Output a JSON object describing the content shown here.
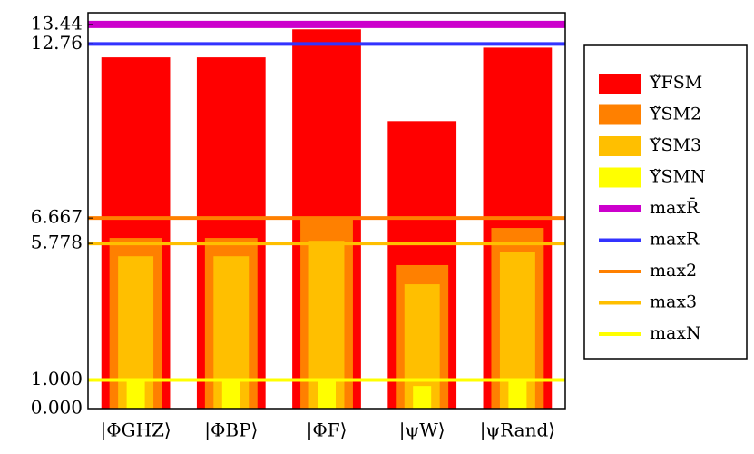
{
  "chart_data": {
    "type": "bar",
    "categories": [
      "|ΦGHZ⟩",
      "|ΦBP⟩",
      "|ΦF⟩",
      "|ψW⟩",
      "|ψRand⟩"
    ],
    "series": [
      {
        "name": "Υ̃FSM",
        "color": "#ff0000",
        "values": [
          12.29,
          12.29,
          13.27,
          10.06,
          12.63
        ]
      },
      {
        "name": "Υ̃SM2",
        "color": "#ff8000",
        "values": [
          5.97,
          5.97,
          6.67,
          5.02,
          6.32
        ]
      },
      {
        "name": "Υ̃SM3",
        "color": "#ffbf00",
        "values": [
          5.33,
          5.33,
          5.87,
          4.35,
          5.49
        ]
      },
      {
        "name": "Υ̃SMN",
        "color": "#ffff00",
        "values": [
          1.0,
          1.0,
          1.0,
          0.79,
          1.0
        ]
      }
    ],
    "reference_lines": [
      {
        "name": "maxR̄",
        "color": "#cc00cc",
        "value": 13.44
      },
      {
        "name": "maxR",
        "color": "#3333ff",
        "value": 12.76
      },
      {
        "name": "max2",
        "color": "#ff8000",
        "value": 6.667
      },
      {
        "name": "max3",
        "color": "#ffbf00",
        "value": 5.778
      },
      {
        "name": "maxN",
        "color": "#ffff00",
        "value": 1.0
      }
    ],
    "ylim": [
      0,
      13.85
    ],
    "yticks": [
      {
        "value": 0,
        "label": "0.000"
      },
      {
        "value": 1,
        "label": "1.000"
      },
      5.778,
      6.667,
      12.76,
      13.44
    ]
  }
}
